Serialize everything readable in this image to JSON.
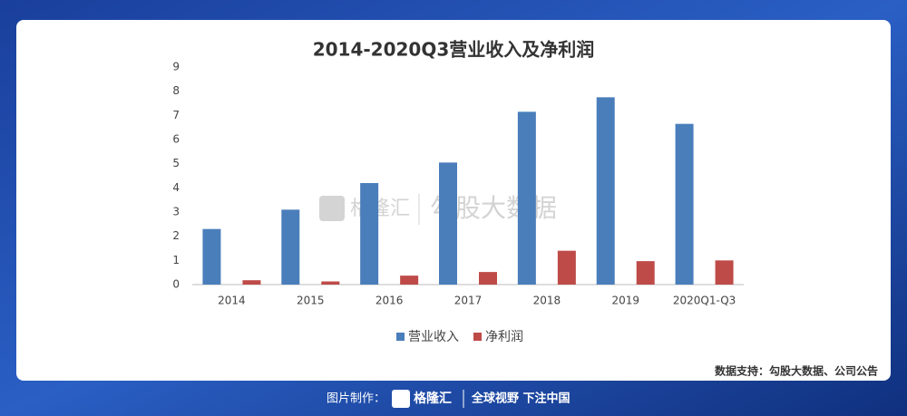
{
  "chart_data": {
    "type": "bar",
    "title": "2014-2020Q3营业收入及净利润",
    "categories": [
      "2014",
      "2015",
      "2016",
      "2017",
      "2018",
      "2019",
      "2020Q1-Q3"
    ],
    "series": [
      {
        "name": "营业收入",
        "color": "#4a7ebb",
        "values": [
          2.3,
          3.1,
          4.2,
          5.05,
          7.15,
          7.75,
          6.65
        ]
      },
      {
        "name": "净利润",
        "color": "#be4b48",
        "values": [
          0.18,
          0.13,
          0.37,
          0.52,
          1.4,
          0.97,
          1.0
        ]
      }
    ],
    "ylim": [
      0,
      9
    ],
    "yticks": [
      0,
      1,
      2,
      3,
      4,
      5,
      6,
      7,
      8,
      9
    ],
    "grid": false,
    "legend": "bottom",
    "source": "数据支持：勾股大数据、公司公告"
  },
  "watermark": {
    "brand": "格隆汇",
    "partner": "勾股大数据"
  },
  "footer": {
    "label": "图片制作：",
    "brand": "格隆汇",
    "slogan": "全球视野 下注中国"
  }
}
